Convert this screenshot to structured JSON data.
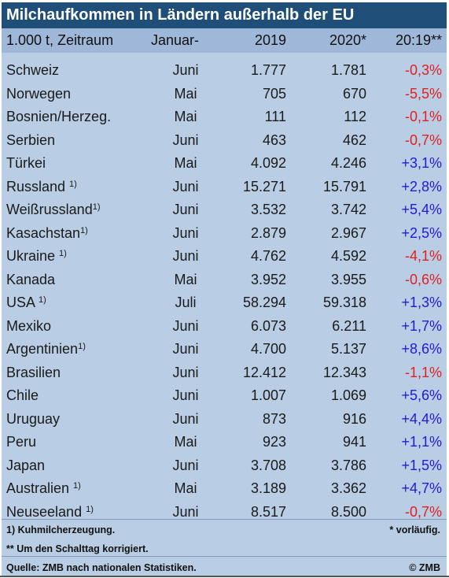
{
  "title": "Milchaufkommen in Ländern außerhalb der EU",
  "header": {
    "unit": "1.000 t, Zeitraum",
    "period": "Januar-",
    "y2019": "2019",
    "y2020": "2020*",
    "change": "20:19**"
  },
  "rows": [
    {
      "country": "Schweiz",
      "sup": "",
      "month": "Juni",
      "v2019": "1.777",
      "v2020": "1.781",
      "change": "-0,3%"
    },
    {
      "country": "Norwegen",
      "sup": "",
      "month": "Mai",
      "v2019": "705",
      "v2020": "670",
      "change": "-5,5%"
    },
    {
      "country": "Bosnien/Herzeg.",
      "sup": "",
      "month": "Mai",
      "v2019": "111",
      "v2020": "112",
      "change": "-0,1%"
    },
    {
      "country": "Serbien",
      "sup": "",
      "month": "Juni",
      "v2019": "463",
      "v2020": "462",
      "change": "-0,7%"
    },
    {
      "country": "Türkei",
      "sup": "",
      "month": "Mai",
      "v2019": "4.092",
      "v2020": "4.246",
      "change": "+3,1%"
    },
    {
      "country": "Russland ",
      "sup": "1)",
      "month": "Juni",
      "v2019": "15.271",
      "v2020": "15.791",
      "change": "+2,8%"
    },
    {
      "country": "Weißrussland",
      "sup": "1)",
      "month": "Juni",
      "v2019": "3.532",
      "v2020": "3.742",
      "change": "+5,4%"
    },
    {
      "country": "Kasachstan",
      "sup": "1)",
      "month": "Juni",
      "v2019": "2.879",
      "v2020": "2.967",
      "change": "+2,5%"
    },
    {
      "country": "Ukraine ",
      "sup": "1)",
      "month": "Juni",
      "v2019": "4.762",
      "v2020": "4.592",
      "change": "-4,1%"
    },
    {
      "country": "Kanada",
      "sup": "",
      "month": "Mai",
      "v2019": "3.952",
      "v2020": "3.955",
      "change": "-0,6%"
    },
    {
      "country": "USA ",
      "sup": "1)",
      "month": "Juli",
      "v2019": "58.294",
      "v2020": "59.318",
      "change": "+1,3%"
    },
    {
      "country": "Mexiko",
      "sup": "",
      "month": "Juni",
      "v2019": "6.073",
      "v2020": "6.211",
      "change": "+1,7%"
    },
    {
      "country": "Argentinien",
      "sup": "1)",
      "month": "Juni",
      "v2019": "4.700",
      "v2020": "5.137",
      "change": "+8,6%"
    },
    {
      "country": "Brasilien",
      "sup": "",
      "month": "Juni",
      "v2019": "12.412",
      "v2020": "12.343",
      "change": "-1,1%"
    },
    {
      "country": "Chile",
      "sup": "",
      "month": "Juni",
      "v2019": "1.007",
      "v2020": "1.069",
      "change": "+5,6%"
    },
    {
      "country": "Uruguay",
      "sup": "",
      "month": "Juni",
      "v2019": "873",
      "v2020": "916",
      "change": "+4,4%"
    },
    {
      "country": "Peru",
      "sup": "",
      "month": "Mai",
      "v2019": "923",
      "v2020": "941",
      "change": "+1,1%"
    },
    {
      "country": "Japan",
      "sup": "",
      "month": "Juni",
      "v2019": "3.708",
      "v2020": "3.786",
      "change": "+1,5%"
    },
    {
      "country": "Australien ",
      "sup": "1)",
      "month": "Mai",
      "v2019": "3.189",
      "v2020": "3.362",
      "change": "+4,7%"
    },
    {
      "country": "Neuseeland ",
      "sup": "1)",
      "month": "Juni",
      "v2019": "8.517",
      "v2020": "8.500",
      "change": "-0,7%"
    }
  ],
  "footnotes": {
    "note1": "1) Kuhmilcherzeugung.",
    "provisional": "* vorläufig.",
    "leapday": "** Um den Schalttag korrigiert.",
    "source": "Quelle: ZMB nach nationalen Statistiken.",
    "copyright": "© ZMB"
  },
  "colors": {
    "title_bg": "#1f4e79",
    "header_bg": "#9fb8d9",
    "table_bg": "#b9cde4",
    "negative": "#e02020",
    "positive": "#1d1dd6"
  }
}
